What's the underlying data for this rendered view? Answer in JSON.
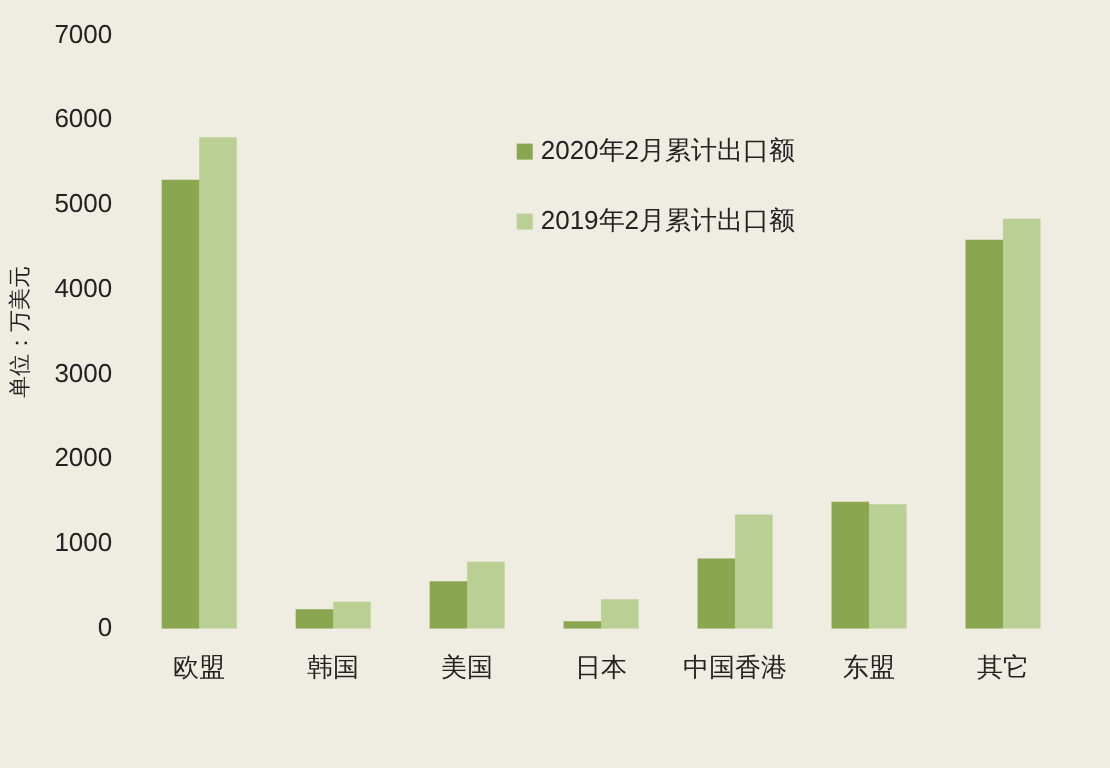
{
  "chart_data": {
    "type": "bar",
    "ylabel": "单位：万美元",
    "categories": [
      "欧盟",
      "韩国",
      "美国",
      "日本",
      "中国香港",
      "东盟",
      "其它"
    ],
    "series": [
      {
        "name": "2020年2月累计出口额",
        "color": "#8aa64e",
        "values": [
          5300,
          230,
          560,
          90,
          830,
          1500,
          4590
        ]
      },
      {
        "name": "2019年2月累计出口额",
        "color": "#b9cf94",
        "values": [
          5800,
          320,
          790,
          350,
          1350,
          1470,
          4840
        ]
      }
    ],
    "ylim": [
      0,
      7000
    ],
    "yticks": [
      0,
      1000,
      2000,
      3000,
      4000,
      5000,
      6000,
      7000
    ],
    "grid": false,
    "legend": "top right"
  }
}
